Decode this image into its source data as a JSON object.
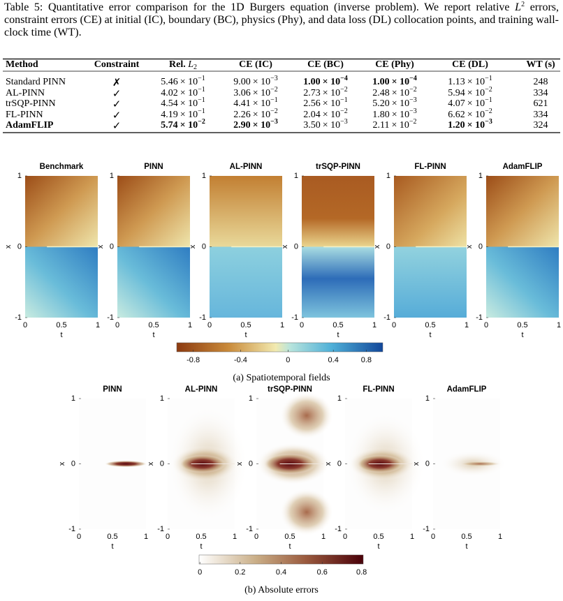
{
  "table": {
    "caption": {
      "label": "Table 5:",
      "before": " Quantitative error comparison for the 1D Burgers equation (inverse problem). We report relative ",
      "var": "L",
      "sup": "2",
      "after": " errors, constraint errors (CE) at initial (IC), boundary (BC), physics (Phy), and data loss (DL) collocation points, and training wall-clock time (WT)."
    },
    "header": [
      "Method",
      "Constraint",
      {
        "text": "Rel. ",
        "var": "L",
        "sub": "2"
      },
      "CE (IC)",
      "CE (BC)",
      "CE (Phy)",
      "CE (DL)",
      "WT (s)"
    ],
    "times_ten": "× 10",
    "rows": [
      {
        "method": "Standard PINN",
        "constraint": "✗",
        "values": [
          {
            "m": "5.46",
            "e": "−1"
          },
          {
            "m": "9.00",
            "e": "−3"
          },
          {
            "m": "1.00",
            "e": "−4"
          },
          {
            "m": "1.00",
            "e": "−4"
          },
          {
            "m": "1.13",
            "e": "−1"
          }
        ],
        "wt": "248",
        "bold_values": [
          2,
          3
        ]
      },
      {
        "method": "AL-PINN",
        "constraint": "✓",
        "values": [
          {
            "m": "4.02",
            "e": "−1"
          },
          {
            "m": "3.06",
            "e": "−2"
          },
          {
            "m": "2.73",
            "e": "−2"
          },
          {
            "m": "2.48",
            "e": "−2"
          },
          {
            "m": "5.94",
            "e": "−2"
          }
        ],
        "wt": "334",
        "bold_values": []
      },
      {
        "method": "trSQP-PINN",
        "constraint": "✓",
        "values": [
          {
            "m": "4.54",
            "e": "−1"
          },
          {
            "m": "4.41",
            "e": "−1"
          },
          {
            "m": "2.56",
            "e": "−1"
          },
          {
            "m": "5.20",
            "e": "−3"
          },
          {
            "m": "4.07",
            "e": "−1"
          }
        ],
        "wt": "621",
        "bold_values": []
      },
      {
        "method": "FL-PINN",
        "constraint": "✓",
        "values": [
          {
            "m": "4.19",
            "e": "−1"
          },
          {
            "m": "2.26",
            "e": "−2"
          },
          {
            "m": "2.04",
            "e": "−2"
          },
          {
            "m": "1.80",
            "e": "−3"
          },
          {
            "m": "6.62",
            "e": "−2"
          }
        ],
        "wt": "334",
        "bold_values": []
      },
      {
        "method": "AdamFLIP",
        "bold_method": true,
        "constraint": "✓",
        "values": [
          {
            "m": "5.74",
            "e": "−2"
          },
          {
            "m": "2.90",
            "e": "−3"
          },
          {
            "m": "3.50",
            "e": "−3"
          },
          {
            "m": "2.11",
            "e": "−2"
          },
          {
            "m": "1.20",
            "e": "−3"
          }
        ],
        "wt": "324",
        "bold_values": [
          0,
          1,
          4
        ]
      }
    ]
  },
  "fields_figure": {
    "panels": [
      "Benchmark",
      "PINN",
      "AL-PINN",
      "trSQP-PINN",
      "FL-PINN",
      "AdamFLIP"
    ],
    "yticks": [
      "1",
      "0",
      "-1"
    ],
    "xticks": [
      "0",
      "0.5",
      "1"
    ],
    "xlabel": "t",
    "ylabel": "x",
    "colorbar_ticks": [
      -0.8,
      -0.4,
      0,
      0.4,
      0.8
    ],
    "caption": "(a) Spatiotemporal fields"
  },
  "errors_figure": {
    "panels": [
      "PINN",
      "AL-PINN",
      "trSQP-PINN",
      "FL-PINN",
      "AdamFLIP"
    ],
    "yticks": [
      "1",
      "0",
      "-1"
    ],
    "xticks": [
      "0",
      "0.5",
      "1"
    ],
    "xlabel": "t",
    "ylabel": "x",
    "colorbar_ticks": [
      0,
      0.2,
      0.4,
      0.6,
      0.8
    ],
    "caption": "(b) Absolute errors"
  }
}
